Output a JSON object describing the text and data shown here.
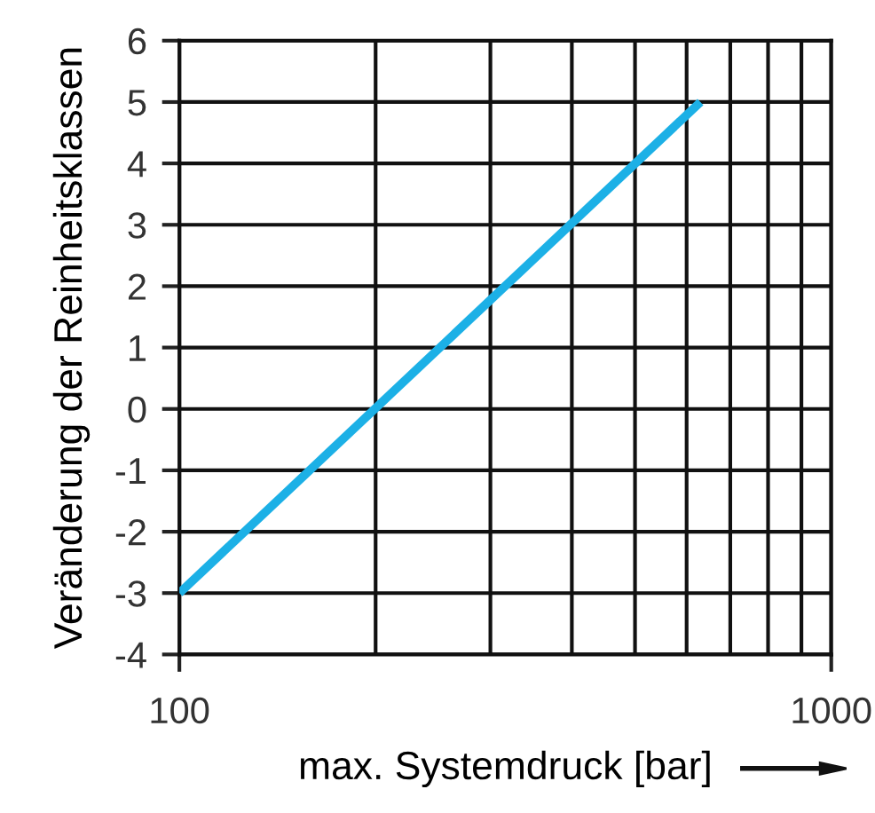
{
  "chart_data": {
    "type": "line",
    "xlabel": "max. Systemdruck [bar]",
    "ylabel": "Veränderung der Reinheitsklassen",
    "log": "x",
    "x": [
      100,
      630
    ],
    "series": [
      {
        "color": "#1cb0e6",
        "values": [
          -3,
          5
        ]
      }
    ],
    "xlim": [
      100,
      1000
    ],
    "xticks": [
      100,
      {
        "value": 200,
        "label": null
      },
      {
        "value": 300,
        "label": null
      },
      {
        "value": 400,
        "label": null
      },
      {
        "value": 500,
        "label": null
      },
      {
        "value": 600,
        "label": null
      },
      {
        "value": 700,
        "label": null
      },
      {
        "value": 800,
        "label": null
      },
      {
        "value": 900,
        "label": null
      },
      1000
    ],
    "ylim": [
      -4,
      6
    ],
    "yticks": [
      -4,
      -3,
      -2,
      -1,
      0,
      1,
      2,
      3,
      4,
      5,
      6
    ],
    "grid": true,
    "marker": "none",
    "line_style": "solid"
  }
}
